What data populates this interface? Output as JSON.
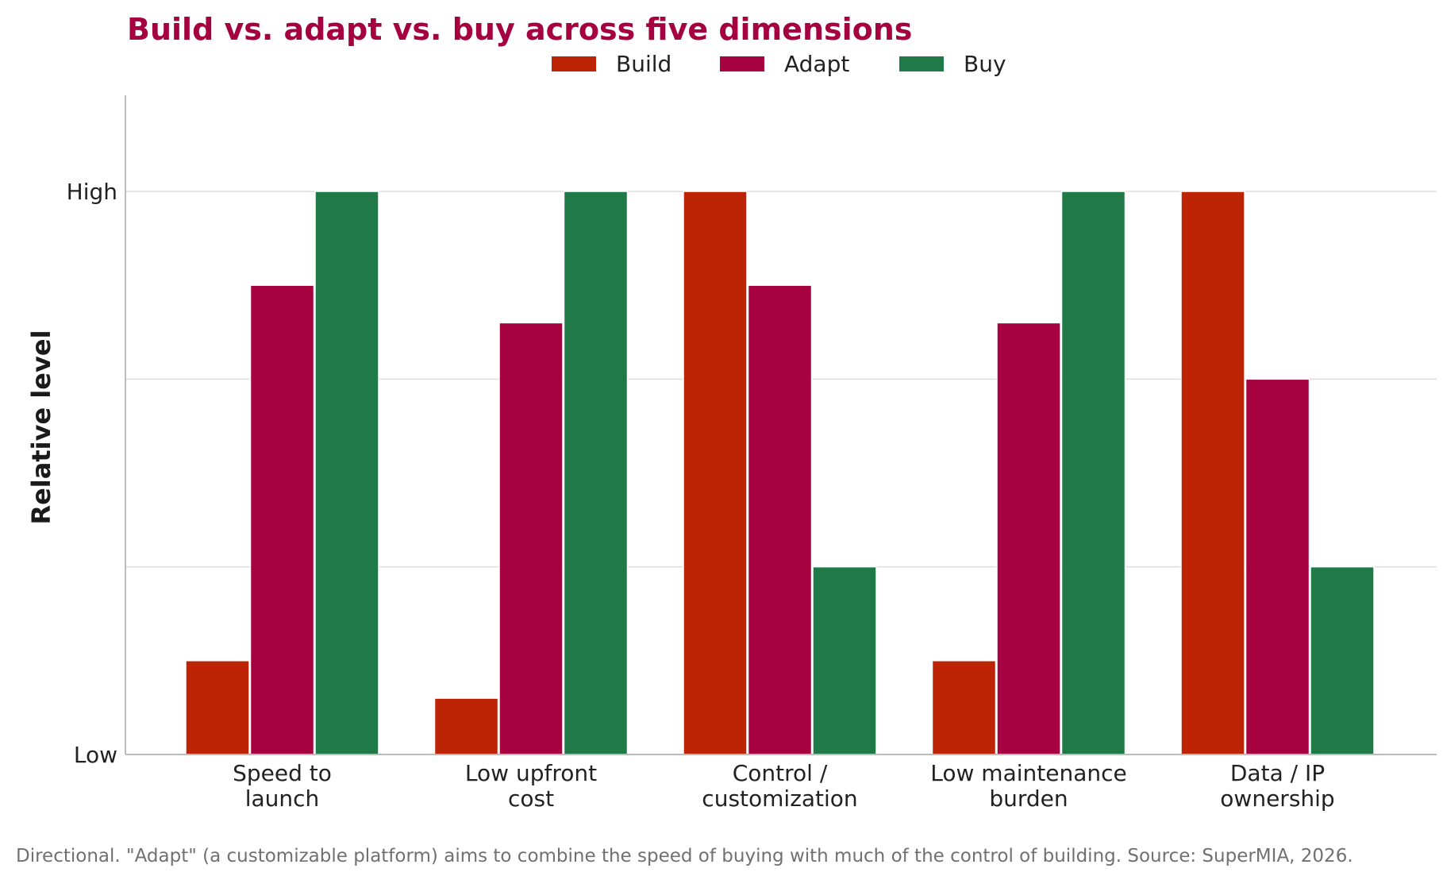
{
  "chart_data": {
    "type": "bar",
    "title": "Build vs. adapt vs. buy across five dimensions",
    "xlabel": "",
    "ylabel": "Relative level",
    "ylim": [
      0,
      3
    ],
    "y_ticks": [
      {
        "value": 0,
        "label": "Low"
      },
      {
        "value": 1,
        "label": ""
      },
      {
        "value": 2,
        "label": ""
      },
      {
        "value": 3,
        "label": "High"
      }
    ],
    "categories": [
      [
        "Speed to",
        "launch"
      ],
      [
        "Low upfront",
        "cost"
      ],
      [
        "Control /",
        "customization"
      ],
      [
        "Low maintenance",
        "burden"
      ],
      [
        "Data / IP",
        "ownership"
      ]
    ],
    "series": [
      {
        "name": "Build",
        "color": "#bd2405",
        "values": [
          0.5,
          0.3,
          3.0,
          0.5,
          3.0
        ]
      },
      {
        "name": "Adapt",
        "color": "#a5023f",
        "values": [
          2.5,
          2.3,
          2.5,
          2.3,
          2.0
        ]
      },
      {
        "name": "Buy",
        "color": "#1f7a47",
        "values": [
          3.0,
          3.0,
          1.0,
          3.0,
          1.0
        ]
      }
    ],
    "grid": "horizontal",
    "legend_position": "top-center",
    "footnote": "Directional. \"Adapt\" (a customizable platform) aims to combine the speed of buying with much of the control of building. Source: SuperMIA, 2026."
  }
}
